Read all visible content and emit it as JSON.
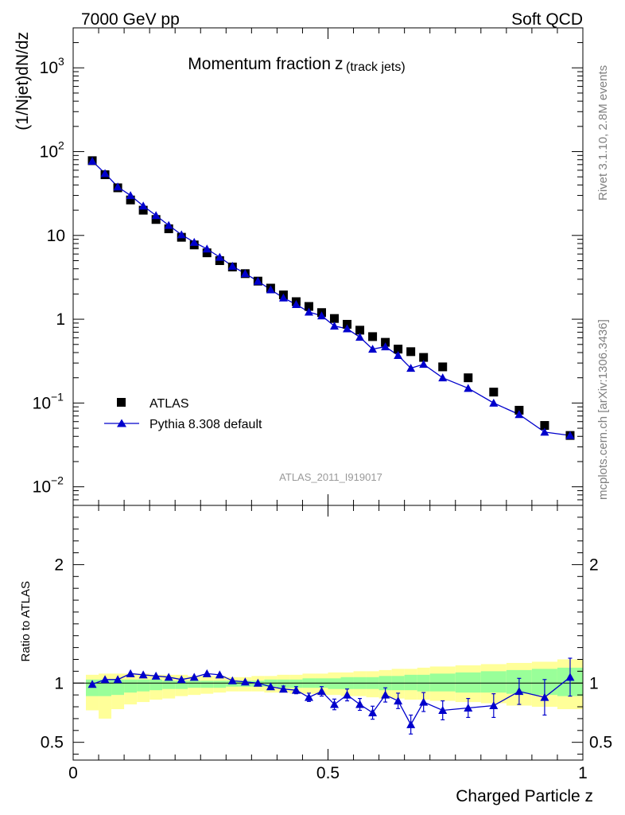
{
  "header": {
    "left": "7000 GeV pp",
    "right": "Soft QCD"
  },
  "side_labels": {
    "upper": "Rivet 3.1.10,  2.8M events",
    "lower": "mcplots.cern.ch [arXiv:1306.3436]"
  },
  "chart_data": [
    {
      "type": "scatter",
      "title": "Momentum fraction",
      "title_sub": "z",
      "title_sub2": "(track jets)",
      "ylabel": "(1/Njet)dN/dz",
      "yscale": "log",
      "ylim": [
        0.006,
        3000
      ],
      "xlim": [
        0,
        1
      ],
      "yticks": [
        {
          "value": 0.01,
          "base": "10",
          "exp": "−2"
        },
        {
          "value": 0.1,
          "base": "10",
          "exp": "−1"
        },
        {
          "value": 1,
          "base": "1",
          "exp": ""
        },
        {
          "value": 10,
          "base": "10",
          "exp": ""
        },
        {
          "value": 100,
          "base": "10",
          "exp": "2"
        },
        {
          "value": 1000,
          "base": "10",
          "exp": "3"
        }
      ],
      "watermark": "ATLAS_2011_I919017",
      "legend_position": "bottom-left",
      "series": [
        {
          "name": "ATLAS",
          "marker": "square",
          "color": "#000000",
          "x": [
            0.0375,
            0.0625,
            0.0875,
            0.1125,
            0.1375,
            0.1625,
            0.1875,
            0.2125,
            0.2375,
            0.2625,
            0.2875,
            0.3125,
            0.3375,
            0.3625,
            0.3875,
            0.4125,
            0.4375,
            0.4625,
            0.4875,
            0.5125,
            0.5375,
            0.5625,
            0.5875,
            0.6125,
            0.6375,
            0.6625,
            0.6875,
            0.725,
            0.775,
            0.825,
            0.875,
            0.925,
            0.975
          ],
          "y": [
            78,
            53,
            37,
            26.5,
            20,
            15.5,
            12,
            9.5,
            7.7,
            6.2,
            5.0,
            4.2,
            3.5,
            2.85,
            2.35,
            1.95,
            1.62,
            1.42,
            1.2,
            1.02,
            0.87,
            0.74,
            0.62,
            0.53,
            0.44,
            0.41,
            0.35,
            0.27,
            0.2,
            0.135,
            0.082,
            0.054,
            0.041
          ]
        },
        {
          "name": "Pythia 8.308 default",
          "marker": "triangle",
          "color": "#0000cc",
          "x": [
            0.0375,
            0.0625,
            0.0875,
            0.1125,
            0.1375,
            0.1625,
            0.1875,
            0.2125,
            0.2375,
            0.2625,
            0.2875,
            0.3125,
            0.3375,
            0.3625,
            0.3875,
            0.4125,
            0.4375,
            0.4625,
            0.4875,
            0.5125,
            0.5375,
            0.5625,
            0.5875,
            0.6125,
            0.6375,
            0.6625,
            0.6875,
            0.725,
            0.775,
            0.825,
            0.875,
            0.925,
            0.975
          ],
          "y": [
            77,
            55,
            38,
            30,
            22.5,
            17.3,
            13.2,
            10.2,
            8.3,
            6.9,
            5.5,
            4.3,
            3.5,
            2.85,
            2.25,
            1.8,
            1.5,
            1.22,
            1.1,
            0.83,
            0.77,
            0.61,
            0.44,
            0.47,
            0.37,
            0.26,
            0.29,
            0.2,
            0.15,
            0.1,
            0.073,
            0.045,
            0.041
          ]
        }
      ]
    },
    {
      "type": "line",
      "ylabel": "Ratio to ATLAS",
      "xlabel": "Charged Particle z",
      "ylim": [
        0.35,
        2.5
      ],
      "xlim": [
        0,
        1
      ],
      "xticks": [
        {
          "value": 0,
          "label": "0"
        },
        {
          "value": 0.5,
          "label": "0.5"
        },
        {
          "value": 1,
          "label": "1"
        }
      ],
      "yticks": [
        {
          "value": 0.5,
          "label": "0.5"
        },
        {
          "value": 1,
          "label": "1"
        },
        {
          "value": 2,
          "label": "2"
        }
      ],
      "reference_line": 1,
      "band_colors": {
        "inner": "#99ff99",
        "outer": "#ffff99"
      },
      "bands": {
        "edges": [
          0.025,
          0.05,
          0.075,
          0.1,
          0.125,
          0.15,
          0.175,
          0.2,
          0.225,
          0.25,
          0.275,
          0.3,
          0.325,
          0.35,
          0.375,
          0.4,
          0.425,
          0.45,
          0.475,
          0.5,
          0.525,
          0.55,
          0.575,
          0.6,
          0.625,
          0.65,
          0.675,
          0.7,
          0.75,
          0.8,
          0.85,
          0.9,
          0.95,
          1.0
        ],
        "outer_low": [
          0.77,
          0.7,
          0.78,
          0.82,
          0.84,
          0.86,
          0.87,
          0.89,
          0.9,
          0.91,
          0.92,
          0.93,
          0.93,
          0.93,
          0.92,
          0.92,
          0.91,
          0.91,
          0.9,
          0.9,
          0.89,
          0.89,
          0.88,
          0.87,
          0.87,
          0.86,
          0.86,
          0.85,
          0.84,
          0.83,
          0.81,
          0.8,
          0.78
        ],
        "outer_high": [
          1.07,
          1.08,
          1.08,
          1.08,
          1.08,
          1.07,
          1.07,
          1.07,
          1.06,
          1.06,
          1.06,
          1.05,
          1.05,
          1.06,
          1.06,
          1.07,
          1.07,
          1.08,
          1.08,
          1.09,
          1.09,
          1.1,
          1.1,
          1.11,
          1.12,
          1.12,
          1.13,
          1.14,
          1.15,
          1.16,
          1.17,
          1.18,
          1.2
        ],
        "inner_low": [
          0.89,
          0.89,
          0.9,
          0.92,
          0.93,
          0.94,
          0.95,
          0.95,
          0.96,
          0.96,
          0.96,
          0.97,
          0.97,
          0.97,
          0.97,
          0.96,
          0.96,
          0.96,
          0.96,
          0.95,
          0.95,
          0.95,
          0.95,
          0.94,
          0.94,
          0.94,
          0.93,
          0.93,
          0.92,
          0.92,
          0.91,
          0.9,
          0.89
        ],
        "inner_high": [
          1.03,
          1.03,
          1.03,
          1.03,
          1.03,
          1.03,
          1.02,
          1.02,
          1.02,
          1.02,
          1.02,
          1.02,
          1.02,
          1.02,
          1.03,
          1.03,
          1.03,
          1.04,
          1.04,
          1.04,
          1.05,
          1.05,
          1.05,
          1.06,
          1.06,
          1.07,
          1.07,
          1.08,
          1.09,
          1.1,
          1.11,
          1.12,
          1.13
        ]
      },
      "series": [
        {
          "name": "Pythia 8.308 default",
          "color": "#0000cc",
          "x": [
            0.0375,
            0.0625,
            0.0875,
            0.1125,
            0.1375,
            0.1625,
            0.1875,
            0.2125,
            0.2375,
            0.2625,
            0.2875,
            0.3125,
            0.3375,
            0.3625,
            0.3875,
            0.4125,
            0.4375,
            0.4625,
            0.4875,
            0.5125,
            0.5375,
            0.5625,
            0.5875,
            0.6125,
            0.6375,
            0.6625,
            0.6875,
            0.725,
            0.775,
            0.825,
            0.875,
            0.925,
            0.975
          ],
          "y": [
            0.99,
            1.03,
            1.03,
            1.08,
            1.07,
            1.06,
            1.05,
            1.03,
            1.05,
            1.08,
            1.07,
            1.02,
            1.01,
            1.0,
            0.97,
            0.95,
            0.94,
            0.88,
            0.93,
            0.82,
            0.9,
            0.82,
            0.75,
            0.9,
            0.85,
            0.65,
            0.84,
            0.77,
            0.79,
            0.81,
            0.93,
            0.88,
            1.05
          ],
          "err": [
            0.01,
            0.01,
            0.01,
            0.01,
            0.01,
            0.01,
            0.01,
            0.01,
            0.01,
            0.01,
            0.01,
            0.015,
            0.015,
            0.02,
            0.02,
            0.025,
            0.03,
            0.035,
            0.04,
            0.045,
            0.05,
            0.05,
            0.055,
            0.06,
            0.065,
            0.08,
            0.08,
            0.08,
            0.08,
            0.1,
            0.11,
            0.15,
            0.16
          ]
        }
      ]
    }
  ]
}
